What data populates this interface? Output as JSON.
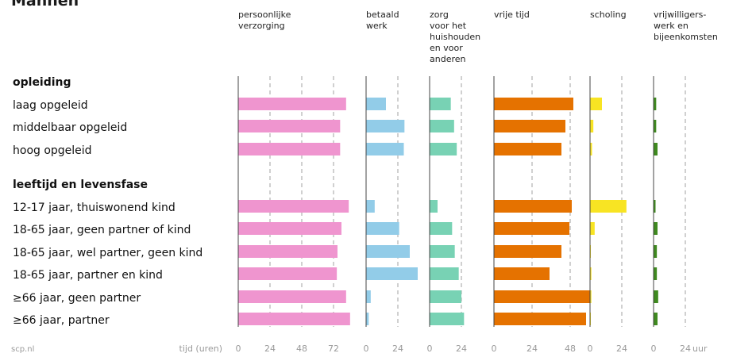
{
  "page": {
    "title": "Mannen",
    "source": "scp.nl",
    "axis_label": "tijd (uren)",
    "unit_label": "uur"
  },
  "chart_data": {
    "type": "bar",
    "orientation": "horizontal",
    "groups": [
      {
        "label": "opleiding",
        "rows": [
          "laag opgeleid",
          "middelbaar opgeleid",
          "hoog opgeleid"
        ]
      },
      {
        "label": "leeftijd en levensfase",
        "rows": [
          "12-17 jaar, thuiswonend kind",
          "18-65 jaar, geen partner of kind",
          "18-65 jaar, wel partner, geen kind",
          "18-65 jaar, partner en kind",
          "≥66 jaar, geen partner",
          "≥66 jaar, partner"
        ]
      }
    ],
    "categories": [
      "laag opgeleid",
      "middelbaar opgeleid",
      "hoog opgeleid",
      "12-17 jaar, thuiswonend kind",
      "18-65 jaar, geen partner of kind",
      "18-65 jaar, wel partner, geen kind",
      "18-65 jaar, partner en kind",
      "≥66 jaar, geen partner",
      "≥66 jaar, partner"
    ],
    "series": [
      {
        "name": "persoonlijke verzorging",
        "name_lines": [
          "persoonlijke",
          "verzorging"
        ],
        "color": "#ef95cf",
        "max": 96,
        "ticks": [
          0,
          24,
          48,
          72
        ],
        "values": [
          81.5,
          77,
          77,
          83.5,
          78,
          75,
          74.5,
          81.5,
          84.5
        ]
      },
      {
        "name": "betaald werk",
        "name_lines": [
          "betaald",
          "werk"
        ],
        "color": "#92cce8",
        "max": 36,
        "ticks": [
          0,
          24
        ],
        "values": [
          15,
          29,
          28.5,
          6.5,
          25,
          33,
          39,
          3.5,
          2
        ]
      },
      {
        "name": "zorg voor het huishouden en voor anderen",
        "name_lines": [
          "zorg",
          "voor het",
          "huishouden",
          "en voor",
          "anderen"
        ],
        "color": "#78d2b4",
        "max": 36,
        "ticks": [
          0,
          24
        ],
        "values": [
          16,
          18.5,
          20.5,
          6,
          17,
          19,
          22,
          24,
          26
        ]
      },
      {
        "name": "vrije tijd",
        "name_lines": [
          "vrije tijd"
        ],
        "color": "#e57200",
        "max": 60,
        "ticks": [
          0,
          24,
          48
        ],
        "values": [
          50,
          45,
          42.5,
          49,
          47.5,
          42.5,
          35,
          60.5,
          58
        ]
      },
      {
        "name": "scholing",
        "name_lines": [
          "scholing"
        ],
        "color": "#f8e423",
        "max": 36,
        "ticks": [
          0,
          24
        ],
        "values": [
          9,
          2.5,
          1.5,
          27.5,
          3.5,
          0.5,
          1,
          1,
          0.5
        ]
      },
      {
        "name": "vrijwilligerswerk en bijeenkomsten",
        "name_lines": [
          "vrijwilligers-",
          "werk en",
          "bijeenkomsten"
        ],
        "color": "#3f8a1f",
        "max": 36,
        "ticks": [
          0,
          24
        ],
        "values": [
          2,
          2,
          3,
          1.5,
          3,
          2.5,
          2.5,
          3.5,
          3
        ]
      }
    ],
    "xlabel": "tijd (uren)",
    "grid": true,
    "legend": "none"
  }
}
